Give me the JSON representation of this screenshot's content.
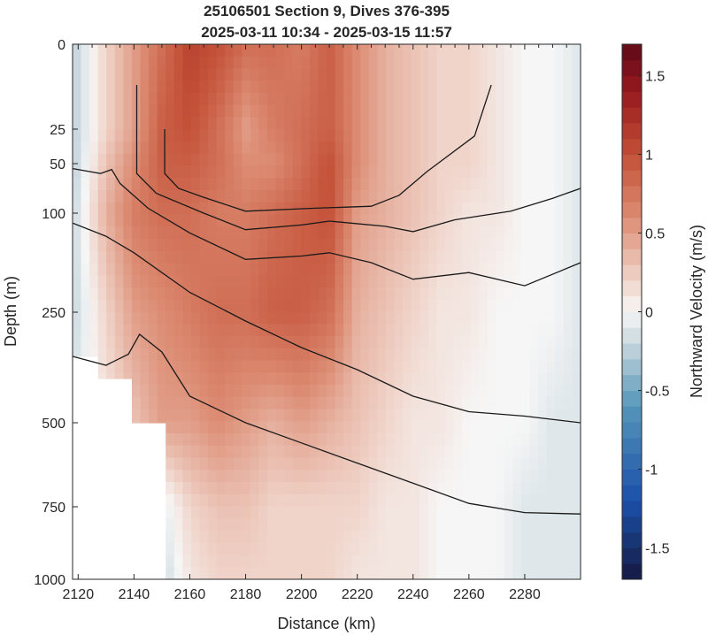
{
  "chart_data": {
    "type": "heatmap",
    "title": "25106501 Section 9, Dives 376-395",
    "subtitle": "2025-03-11 10:34 - 2025-03-15 11:57",
    "xlabel": "Distance (km)",
    "ylabel": "Depth (m)",
    "xlim": [
      2118,
      2300
    ],
    "ylim": [
      0,
      1000
    ],
    "y_reversed": true,
    "y_scale": "piecewise (stretched near surface)",
    "x_ticks": [
      "2120",
      "2140",
      "2160",
      "2180",
      "2200",
      "2220",
      "2240",
      "2260",
      "2280"
    ],
    "x_tick_values": [
      2120,
      2140,
      2160,
      2180,
      2200,
      2220,
      2240,
      2260,
      2280
    ],
    "y_ticks": [
      "0",
      "25",
      "50",
      "100",
      "250",
      "500",
      "750",
      "1000"
    ],
    "y_tick_values": [
      0,
      25,
      50,
      100,
      250,
      500,
      750,
      1000
    ],
    "colorbar": {
      "label": "Northward Velocity (m/s)",
      "range": [
        -1.7,
        1.7
      ],
      "ticks": [
        "1.5",
        "1",
        "0.5",
        "0",
        "-0.5",
        "-1",
        "-1.5"
      ],
      "tick_values": [
        1.5,
        1,
        0.5,
        0,
        -0.5,
        -1,
        -1.5
      ],
      "colormap": "diverging blue-white-red"
    },
    "grid": false,
    "data_extent": [
      {
        "x": 2118,
        "max_depth": 350
      },
      {
        "x": 2128,
        "max_depth": 400
      },
      {
        "x": 2140,
        "max_depth": 500
      },
      {
        "x": 2150,
        "max_depth": 600
      },
      {
        "x": 2152,
        "max_depth": 1000
      },
      {
        "x": 2300,
        "max_depth": 1000
      }
    ],
    "velocity_field": {
      "x": [
        2118,
        2130,
        2140,
        2150,
        2160,
        2170,
        2180,
        2190,
        2200,
        2210,
        2220,
        2230,
        2240,
        2250,
        2260,
        2270,
        2280,
        2290,
        2300
      ],
      "depth": [
        0,
        25,
        50,
        100,
        250,
        500,
        750,
        1000
      ],
      "values": [
        [
          -0.25,
          0.2,
          0.5,
          0.8,
          1.1,
          1.0,
          0.8,
          0.8,
          0.7,
          0.9,
          0.6,
          0.4,
          0.3,
          0.2,
          0.2,
          0.1,
          0.0,
          0.0,
          -0.1
        ],
        [
          -0.25,
          0.2,
          0.5,
          0.9,
          1.0,
          0.8,
          0.5,
          0.7,
          0.8,
          0.9,
          0.6,
          0.4,
          0.3,
          0.2,
          0.2,
          0.1,
          0.0,
          0.0,
          -0.1
        ],
        [
          -0.25,
          0.3,
          0.6,
          0.9,
          0.9,
          0.8,
          0.6,
          0.6,
          0.8,
          1.0,
          0.6,
          0.4,
          0.3,
          0.2,
          0.2,
          0.1,
          0.0,
          0.0,
          -0.1
        ],
        [
          -0.2,
          0.4,
          0.7,
          0.8,
          0.8,
          0.7,
          0.7,
          0.8,
          0.9,
          1.0,
          0.5,
          0.4,
          0.3,
          0.2,
          0.1,
          0.1,
          0.0,
          0.0,
          -0.1
        ],
        [
          -0.2,
          0.2,
          0.5,
          0.6,
          0.7,
          0.8,
          0.8,
          0.9,
          0.9,
          0.8,
          0.4,
          0.3,
          0.2,
          0.1,
          0.1,
          0.0,
          0.0,
          0.0,
          -0.1
        ],
        [
          -0.1,
          0.1,
          0.3,
          0.5,
          0.5,
          0.6,
          0.5,
          0.4,
          0.5,
          0.4,
          0.3,
          0.2,
          0.1,
          0.1,
          0.0,
          0.0,
          0.0,
          -0.1,
          -0.1
        ],
        [
          -0.1,
          0.0,
          0.1,
          -0.1,
          0.2,
          0.3,
          0.3,
          0.2,
          0.2,
          0.2,
          0.2,
          0.1,
          0.1,
          0.0,
          0.0,
          0.0,
          -0.1,
          -0.1,
          -0.1
        ],
        [
          -0.1,
          0.0,
          0.1,
          -0.2,
          0.1,
          0.2,
          0.2,
          0.2,
          0.2,
          0.2,
          0.1,
          0.1,
          0.1,
          0.0,
          0.0,
          0.0,
          -0.1,
          -0.1,
          -0.1
        ]
      ]
    },
    "contour_lines": [
      {
        "points": [
          [
            2151,
            25
          ],
          [
            2151,
            60
          ],
          [
            2156,
            75
          ],
          [
            2165,
            84
          ],
          [
            2180,
            98
          ],
          [
            2205,
            95
          ],
          [
            2225,
            93
          ],
          [
            2235,
            82
          ],
          [
            2245,
            58
          ],
          [
            2262,
            30
          ],
          [
            2268,
            12
          ]
        ]
      },
      {
        "points": [
          [
            2141,
            12
          ],
          [
            2141,
            60
          ],
          [
            2148,
            80
          ],
          [
            2165,
            100
          ],
          [
            2180,
            125
          ],
          [
            2200,
            118
          ],
          [
            2210,
            112
          ],
          [
            2230,
            120
          ],
          [
            2240,
            128
          ],
          [
            2255,
            110
          ],
          [
            2275,
            98
          ],
          [
            2290,
            85
          ],
          [
            2300,
            75
          ]
        ]
      },
      {
        "points": [
          [
            2118,
            55
          ],
          [
            2128,
            60
          ],
          [
            2132,
            56
          ],
          [
            2135,
            70
          ],
          [
            2145,
            95
          ],
          [
            2160,
            130
          ],
          [
            2180,
            170
          ],
          [
            2200,
            165
          ],
          [
            2210,
            160
          ],
          [
            2225,
            175
          ],
          [
            2240,
            200
          ],
          [
            2260,
            190
          ],
          [
            2280,
            210
          ],
          [
            2300,
            175
          ]
        ]
      },
      {
        "points": [
          [
            2118,
            115
          ],
          [
            2130,
            135
          ],
          [
            2140,
            160
          ],
          [
            2160,
            220
          ],
          [
            2180,
            270
          ],
          [
            2200,
            330
          ],
          [
            2220,
            380
          ],
          [
            2240,
            440
          ],
          [
            2260,
            475
          ],
          [
            2280,
            485
          ],
          [
            2300,
            500
          ]
        ]
      },
      {
        "points": [
          [
            2118,
            350
          ],
          [
            2130,
            370
          ],
          [
            2138,
            345
          ],
          [
            2142,
            300
          ],
          [
            2150,
            340
          ],
          [
            2160,
            440
          ],
          [
            2180,
            500
          ],
          [
            2200,
            560
          ],
          [
            2220,
            620
          ],
          [
            2240,
            680
          ],
          [
            2260,
            740
          ],
          [
            2280,
            770
          ],
          [
            2300,
            775
          ]
        ]
      }
    ]
  }
}
